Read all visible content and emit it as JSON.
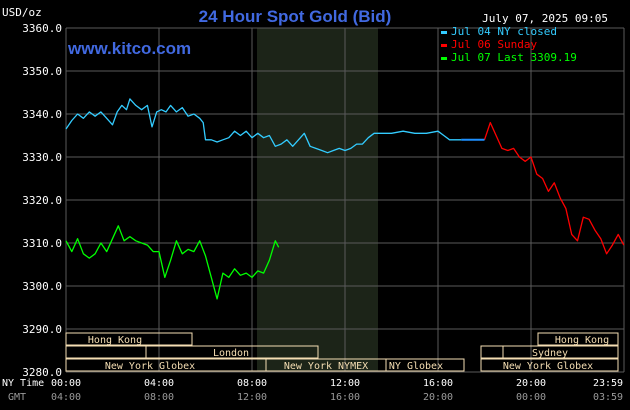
{
  "header": {
    "unit": "USD/oz",
    "title": "24 Hour Spot Gold (Bid)",
    "date": "July 07, 2025 09:05",
    "site": "www.kitco.com"
  },
  "colors": {
    "background": "#000000",
    "grid": "#5a5a5a",
    "title": "#4169e1",
    "jul04": "#33ccff",
    "jul06": "#ff0000",
    "jul07": "#00ff00",
    "connector": "#1e90ff",
    "session_fill": "#f5deb3",
    "highlight": "#1c2418",
    "axis_text": "#ffffff",
    "gmt_text": "#9a9a9a"
  },
  "legend": [
    {
      "label": "Jul 04 NY closed",
      "color": "#33ccff"
    },
    {
      "label": "Jul 06 Sunday",
      "color": "#ff0000"
    },
    {
      "label": "Jul 07 Last 3309.19",
      "color": "#00ff00"
    }
  ],
  "axes": {
    "row1_label": "NY Time",
    "row2_label": "GMT",
    "ny_ticks": [
      "00:00",
      "04:00",
      "08:00",
      "12:00",
      "16:00",
      "20:00",
      "23:59"
    ],
    "gmt_ticks": [
      "04:00",
      "08:00",
      "12:00",
      "16:00",
      "20:00",
      "00:00",
      "03:59"
    ]
  },
  "sessions": {
    "left": [
      "Hong Kong",
      "London",
      "New York Globex",
      "New York NYMEX",
      "NY Globex"
    ],
    "right": [
      "Hong Kong",
      "Sydney",
      "New York Globex"
    ]
  },
  "chart_data": {
    "type": "line",
    "title": "24 Hour Spot Gold (Bid)",
    "ylabel": "USD/oz",
    "xlabel": "NY Time",
    "x_unit": "hours (NY time, 0 = 00:00)",
    "xlim": [
      0,
      24
    ],
    "ylim": [
      3280.0,
      3360.0
    ],
    "yticks": [
      3280.0,
      3290.0,
      3300.0,
      3310.0,
      3320.0,
      3330.0,
      3340.0,
      3350.0,
      3360.0
    ],
    "yticks_text": [
      "3280.0",
      "3290.0",
      "3300.0",
      "3310.0",
      "3320.0",
      "3330.0",
      "3340.0",
      "3350.0",
      "3360.0"
    ],
    "grid": true,
    "legend_position": "top-right",
    "series": [
      {
        "name": "Jul 04 NY closed",
        "color": "#33ccff",
        "x": [
          0,
          0.25,
          0.5,
          0.75,
          1.0,
          1.25,
          1.5,
          1.75,
          2.0,
          2.2,
          2.4,
          2.6,
          2.75,
          3.0,
          3.25,
          3.5,
          3.7,
          3.9,
          4.1,
          4.3,
          4.5,
          4.75,
          5.0,
          5.25,
          5.5,
          5.75,
          5.9,
          6.0,
          6.25,
          6.5,
          6.75,
          7.0,
          7.25,
          7.5,
          7.75,
          8.0,
          8.25,
          8.5,
          8.75,
          9.0,
          9.25,
          9.5,
          9.75,
          10.0,
          10.25,
          10.5,
          10.75,
          11.0,
          11.25,
          11.5,
          11.75,
          12.0,
          12.25,
          12.5,
          12.75,
          13.0,
          13.25,
          13.5,
          14.0,
          14.5,
          15.0,
          15.5,
          16.0,
          16.25,
          16.5,
          16.75,
          17.0
        ],
        "y": [
          3336.5,
          3338.5,
          3340.0,
          3339.0,
          3340.5,
          3339.5,
          3340.5,
          3339.0,
          3337.5,
          3340.5,
          3342.0,
          3341.0,
          3343.5,
          3342.0,
          3341.0,
          3342.0,
          3337.0,
          3340.5,
          3341.0,
          3340.5,
          3342.0,
          3340.5,
          3341.5,
          3339.5,
          3340.0,
          3339.0,
          3338.0,
          3334.0,
          3334.0,
          3333.5,
          3334.0,
          3334.5,
          3336.0,
          3335.0,
          3336.0,
          3334.5,
          3335.5,
          3334.5,
          3335.0,
          3332.5,
          3333.0,
          3334.0,
          3332.5,
          3334.0,
          3335.5,
          3332.5,
          3332.0,
          3331.5,
          3331.0,
          3331.5,
          3332.0,
          3331.5,
          3332.0,
          3333.0,
          3333.0,
          3334.5,
          3335.5,
          3335.5,
          3335.5,
          3336.0,
          3335.5,
          3335.5,
          3336.0,
          3335.0,
          3334.0,
          3334.0,
          3334.0
        ]
      },
      {
        "name": "Jul 06 Sunday",
        "color": "#ff0000",
        "x": [
          18.0,
          18.25,
          18.5,
          18.75,
          19.0,
          19.25,
          19.5,
          19.75,
          20.0,
          20.25,
          20.5,
          20.75,
          21.0,
          21.25,
          21.5,
          21.75,
          22.0,
          22.25,
          22.5,
          22.75,
          23.0,
          23.25,
          23.5,
          23.75,
          23.99
        ],
        "y": [
          3334.0,
          3338.0,
          3335.0,
          3332.0,
          3331.5,
          3332.0,
          3330.0,
          3329.0,
          3330.0,
          3326.0,
          3325.0,
          3322.0,
          3324.0,
          3320.5,
          3318.0,
          3312.0,
          3310.5,
          3316.0,
          3315.5,
          3313.0,
          3311.0,
          3307.5,
          3309.5,
          3312.0,
          3309.5
        ]
      },
      {
        "name": "Jul 07 Last 3309.19",
        "color": "#00ff00",
        "x": [
          0,
          0.25,
          0.5,
          0.75,
          1.0,
          1.25,
          1.5,
          1.75,
          2.0,
          2.25,
          2.5,
          2.75,
          3.0,
          3.25,
          3.5,
          3.75,
          4.0,
          4.25,
          4.5,
          4.75,
          5.0,
          5.25,
          5.5,
          5.75,
          6.0,
          6.25,
          6.5,
          6.75,
          7.0,
          7.25,
          7.5,
          7.75,
          8.0,
          8.25,
          8.5,
          8.75,
          9.0,
          9.15
        ],
        "y": [
          3310.5,
          3308.0,
          3311.0,
          3307.5,
          3306.5,
          3307.5,
          3310.0,
          3308.0,
          3311.0,
          3314.0,
          3310.5,
          3311.5,
          3310.5,
          3310.0,
          3309.5,
          3308.0,
          3308.0,
          3302.0,
          3306.0,
          3310.5,
          3307.5,
          3308.5,
          3308.0,
          3310.5,
          3307.0,
          3302.0,
          3297.0,
          3303.0,
          3302.0,
          3304.0,
          3302.5,
          3303.0,
          3302.0,
          3303.5,
          3303.0,
          3306.0,
          3310.5,
          3309.0
        ]
      }
    ],
    "connector": {
      "color": "#1e90ff",
      "x": [
        17.0,
        18.0
      ],
      "y": [
        3334.0,
        3334.0
      ]
    }
  }
}
